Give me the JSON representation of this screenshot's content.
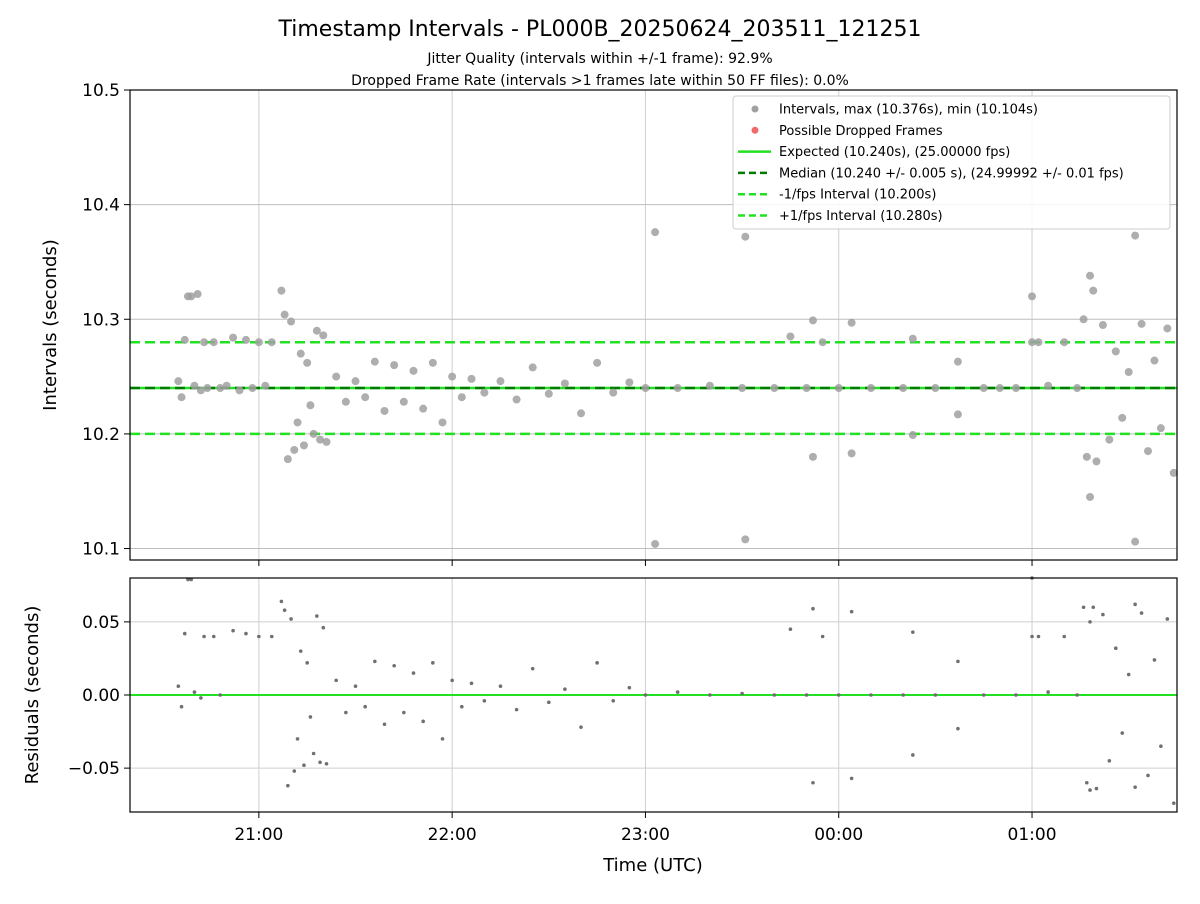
{
  "chart_data": [
    {
      "type": "scatter",
      "title": "Timestamp Intervals - PL000B_20250624_203511_121251",
      "subtitle_lines": [
        "Jitter Quality (intervals within +/-1 frame): 92.9%",
        "Dropped Frame Rate (intervals >1 frames late within 50 FF files): 0.0%"
      ],
      "ylabel": "Intervals (seconds)",
      "xlabel": "",
      "xlim": [
        "20:20",
        "01:45"
      ],
      "ylim": [
        10.09,
        10.5
      ],
      "yticks": [
        10.1,
        10.2,
        10.3,
        10.4,
        10.5
      ],
      "ytick_labels": [
        "10.1",
        "10.2",
        "10.3",
        "10.4",
        "10.5"
      ],
      "grid": true,
      "legend_position": "upper right",
      "legend": [
        {
          "label": "Intervals, max (10.376s), min (10.104s)",
          "marker": "dot",
          "color": "#a0a0a0"
        },
        {
          "label": "Possible Dropped Frames",
          "marker": "dot",
          "color": "#f06a6a"
        },
        {
          "label": "Expected (10.240s), (25.00000 fps)",
          "marker": "solid-line",
          "color": "#22e022"
        },
        {
          "label": "Median (10.240 +/- 0.005 s), (24.99992 +/- 0.01 fps)",
          "marker": "dashed-line",
          "color": "#007a00"
        },
        {
          "label": "-1/fps Interval (10.200s)",
          "marker": "dashed-line",
          "color": "#22e022"
        },
        {
          "label": "+1/fps Interval (10.280s)",
          "marker": "dashed-line",
          "color": "#22e022"
        }
      ],
      "reference_lines": {
        "expected": 10.24,
        "median": 10.24,
        "minus_one_frame": 10.2,
        "plus_one_frame": 10.28
      },
      "series": [
        {
          "name": "Intervals, max (10.376s), min (10.104s)",
          "color": "#a0a0a0",
          "points": [
            [
              "20:35",
              10.246
            ],
            [
              "20:36",
              10.232
            ],
            [
              "20:37",
              10.282
            ],
            [
              "20:38",
              10.32
            ],
            [
              "20:39",
              10.32
            ],
            [
              "20:40",
              10.242
            ],
            [
              "20:41",
              10.322
            ],
            [
              "20:42",
              10.238
            ],
            [
              "20:43",
              10.28
            ],
            [
              "20:44",
              10.24
            ],
            [
              "20:46",
              10.28
            ],
            [
              "20:48",
              10.24
            ],
            [
              "20:50",
              10.242
            ],
            [
              "20:52",
              10.284
            ],
            [
              "20:54",
              10.238
            ],
            [
              "20:56",
              10.282
            ],
            [
              "20:58",
              10.24
            ],
            [
              "21:00",
              10.28
            ],
            [
              "21:02",
              10.242
            ],
            [
              "21:04",
              10.28
            ],
            [
              "21:07",
              10.325
            ],
            [
              "21:08",
              10.304
            ],
            [
              "21:09",
              10.178
            ],
            [
              "21:10",
              10.298
            ],
            [
              "21:11",
              10.186
            ],
            [
              "21:12",
              10.21
            ],
            [
              "21:13",
              10.27
            ],
            [
              "21:14",
              10.19
            ],
            [
              "21:15",
              10.262
            ],
            [
              "21:16",
              10.225
            ],
            [
              "21:17",
              10.2
            ],
            [
              "21:18",
              10.29
            ],
            [
              "21:19",
              10.195
            ],
            [
              "21:20",
              10.286
            ],
            [
              "21:21",
              10.193
            ],
            [
              "21:24",
              10.25
            ],
            [
              "21:27",
              10.228
            ],
            [
              "21:30",
              10.246
            ],
            [
              "21:33",
              10.232
            ],
            [
              "21:36",
              10.263
            ],
            [
              "21:39",
              10.22
            ],
            [
              "21:42",
              10.26
            ],
            [
              "21:45",
              10.228
            ],
            [
              "21:48",
              10.255
            ],
            [
              "21:51",
              10.222
            ],
            [
              "21:54",
              10.262
            ],
            [
              "21:57",
              10.21
            ],
            [
              "22:00",
              10.25
            ],
            [
              "22:03",
              10.232
            ],
            [
              "22:06",
              10.248
            ],
            [
              "22:10",
              10.236
            ],
            [
              "22:15",
              10.246
            ],
            [
              "22:20",
              10.23
            ],
            [
              "22:25",
              10.258
            ],
            [
              "22:30",
              10.235
            ],
            [
              "22:35",
              10.244
            ],
            [
              "22:40",
              10.218
            ],
            [
              "22:45",
              10.262
            ],
            [
              "22:50",
              10.236
            ],
            [
              "22:55",
              10.245
            ],
            [
              "23:00",
              10.24
            ],
            [
              "23:03",
              10.376
            ],
            [
              "23:03",
              10.104
            ],
            [
              "23:10",
              10.24
            ],
            [
              "23:20",
              10.242
            ],
            [
              "23:30",
              10.24
            ],
            [
              "23:31",
              10.372
            ],
            [
              "23:31",
              10.108
            ],
            [
              "23:40",
              10.24
            ],
            [
              "23:45",
              10.285
            ],
            [
              "23:50",
              10.24
            ],
            [
              "23:52",
              10.299
            ],
            [
              "23:52",
              10.18
            ],
            [
              "23:55",
              10.28
            ],
            [
              "00:00",
              10.24
            ],
            [
              "00:04",
              10.297
            ],
            [
              "00:04",
              10.183
            ],
            [
              "00:10",
              10.24
            ],
            [
              "00:20",
              10.24
            ],
            [
              "00:23",
              10.283
            ],
            [
              "00:23",
              10.199
            ],
            [
              "00:30",
              10.24
            ],
            [
              "00:37",
              10.263
            ],
            [
              "00:37",
              10.217
            ],
            [
              "00:45",
              10.24
            ],
            [
              "00:50",
              10.24
            ],
            [
              "00:55",
              10.24
            ],
            [
              "01:00",
              10.32
            ],
            [
              "01:00",
              10.28
            ],
            [
              "01:02",
              10.28
            ],
            [
              "01:05",
              10.242
            ],
            [
              "01:10",
              10.28
            ],
            [
              "01:14",
              10.24
            ],
            [
              "01:16",
              10.3
            ],
            [
              "01:17",
              10.18
            ],
            [
              "01:18",
              10.338
            ],
            [
              "01:18",
              10.145
            ],
            [
              "01:19",
              10.325
            ],
            [
              "01:20",
              10.176
            ],
            [
              "01:22",
              10.295
            ],
            [
              "01:24",
              10.195
            ],
            [
              "01:26",
              10.272
            ],
            [
              "01:28",
              10.214
            ],
            [
              "01:30",
              10.254
            ],
            [
              "01:32",
              10.373
            ],
            [
              "01:32",
              10.106
            ],
            [
              "01:34",
              10.296
            ],
            [
              "01:36",
              10.185
            ],
            [
              "01:38",
              10.264
            ],
            [
              "01:40",
              10.205
            ],
            [
              "01:42",
              10.292
            ],
            [
              "01:44",
              10.166
            ]
          ]
        }
      ]
    },
    {
      "type": "scatter",
      "title": "",
      "xlabel": "Time (UTC)",
      "ylabel": "Residuals (seconds)",
      "xlim": [
        "20:20",
        "01:45"
      ],
      "ylim": [
        -0.08,
        0.08
      ],
      "yticks": [
        -0.05,
        0.0,
        0.05
      ],
      "ytick_labels": [
        "−0.05",
        "0.00",
        "0.05"
      ],
      "xticks": [
        "21:00",
        "22:00",
        "23:00",
        "00:00",
        "01:00"
      ],
      "grid": true,
      "zero_line": {
        "value": 0.0,
        "color": "#22e022"
      },
      "series": [
        {
          "name": "",
          "color": "#707070",
          "points": [
            [
              "20:35",
              0.006
            ],
            [
              "20:36",
              -0.008
            ],
            [
              "20:37",
              0.042
            ],
            [
              "20:38",
              0.079
            ],
            [
              "20:39",
              0.079
            ],
            [
              "20:40",
              0.002
            ],
            [
              "20:42",
              -0.002
            ],
            [
              "20:43",
              0.04
            ],
            [
              "20:46",
              0.04
            ],
            [
              "20:48",
              0.0
            ],
            [
              "20:52",
              0.044
            ],
            [
              "20:56",
              0.042
            ],
            [
              "21:00",
              0.04
            ],
            [
              "21:04",
              0.04
            ],
            [
              "21:07",
              0.064
            ],
            [
              "21:08",
              0.058
            ],
            [
              "21:09",
              -0.062
            ],
            [
              "21:10",
              0.052
            ],
            [
              "21:11",
              -0.052
            ],
            [
              "21:12",
              -0.03
            ],
            [
              "21:13",
              0.03
            ],
            [
              "21:14",
              -0.048
            ],
            [
              "21:15",
              0.022
            ],
            [
              "21:16",
              -0.015
            ],
            [
              "21:17",
              -0.04
            ],
            [
              "21:18",
              0.054
            ],
            [
              "21:19",
              -0.046
            ],
            [
              "21:20",
              0.046
            ],
            [
              "21:21",
              -0.047
            ],
            [
              "21:24",
              0.01
            ],
            [
              "21:27",
              -0.012
            ],
            [
              "21:30",
              0.006
            ],
            [
              "21:33",
              -0.008
            ],
            [
              "21:36",
              0.023
            ],
            [
              "21:39",
              -0.02
            ],
            [
              "21:42",
              0.02
            ],
            [
              "21:45",
              -0.012
            ],
            [
              "21:48",
              0.015
            ],
            [
              "21:51",
              -0.018
            ],
            [
              "21:54",
              0.022
            ],
            [
              "21:57",
              -0.03
            ],
            [
              "22:00",
              0.01
            ],
            [
              "22:03",
              -0.008
            ],
            [
              "22:06",
              0.008
            ],
            [
              "22:10",
              -0.004
            ],
            [
              "22:15",
              0.006
            ],
            [
              "22:20",
              -0.01
            ],
            [
              "22:25",
              0.018
            ],
            [
              "22:30",
              -0.005
            ],
            [
              "22:35",
              0.004
            ],
            [
              "22:40",
              -0.022
            ],
            [
              "22:45",
              0.022
            ],
            [
              "22:50",
              -0.004
            ],
            [
              "22:55",
              0.005
            ],
            [
              "23:00",
              0.0
            ],
            [
              "23:10",
              0.002
            ],
            [
              "23:20",
              0.0
            ],
            [
              "23:30",
              0.001
            ],
            [
              "23:40",
              0.0
            ],
            [
              "23:45",
              0.045
            ],
            [
              "23:50",
              0.0
            ],
            [
              "23:52",
              0.059
            ],
            [
              "23:52",
              -0.06
            ],
            [
              "23:55",
              0.04
            ],
            [
              "00:00",
              0.0
            ],
            [
              "00:04",
              0.057
            ],
            [
              "00:04",
              -0.057
            ],
            [
              "00:10",
              0.0
            ],
            [
              "00:20",
              0.0
            ],
            [
              "00:23",
              0.043
            ],
            [
              "00:23",
              -0.041
            ],
            [
              "00:30",
              0.0
            ],
            [
              "00:37",
              0.023
            ],
            [
              "00:37",
              -0.023
            ],
            [
              "00:45",
              0.0
            ],
            [
              "00:55",
              0.0
            ],
            [
              "01:00",
              0.08
            ],
            [
              "01:00",
              0.04
            ],
            [
              "01:02",
              0.04
            ],
            [
              "01:05",
              0.002
            ],
            [
              "01:10",
              0.04
            ],
            [
              "01:14",
              0.0
            ],
            [
              "01:16",
              0.06
            ],
            [
              "01:17",
              -0.06
            ],
            [
              "01:18",
              0.05
            ],
            [
              "01:18",
              -0.065
            ],
            [
              "01:19",
              0.06
            ],
            [
              "01:20",
              -0.064
            ],
            [
              "01:22",
              0.055
            ],
            [
              "01:24",
              -0.045
            ],
            [
              "01:26",
              0.032
            ],
            [
              "01:28",
              -0.026
            ],
            [
              "01:30",
              0.014
            ],
            [
              "01:32",
              0.062
            ],
            [
              "01:32",
              -0.063
            ],
            [
              "01:34",
              0.056
            ],
            [
              "01:36",
              -0.055
            ],
            [
              "01:38",
              0.024
            ],
            [
              "01:40",
              -0.035
            ],
            [
              "01:42",
              0.052
            ],
            [
              "01:44",
              -0.074
            ]
          ]
        }
      ]
    }
  ]
}
